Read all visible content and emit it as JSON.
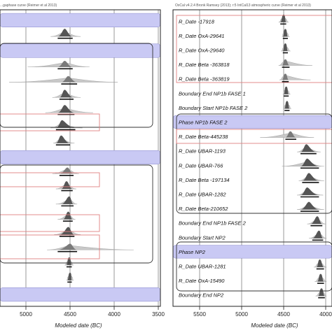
{
  "left_panel": {
    "header": "...gaphase curve (Reimer et al 2013)",
    "xlabel": "Modeled date (BC)",
    "ticks": [
      "5000",
      "4500",
      "4000",
      "3500"
    ],
    "rows": [
      {
        "kind": "phase-bar",
        "label": "",
        "dist": null
      },
      {
        "kind": "dist",
        "label": "",
        "dist": {
          "start": 4720,
          "peak": 4560,
          "end": 4380,
          "range": [
            4640,
            4470
          ],
          "light": false
        }
      },
      {
        "kind": "phase-bar",
        "label": "",
        "dist": null
      },
      {
        "kind": "dist",
        "label": "",
        "dist": {
          "start": 4980,
          "peak": 4560,
          "end": 4280,
          "range": [
            4640,
            4470
          ],
          "light": true
        }
      },
      {
        "kind": "dist",
        "label": "",
        "dist": {
          "start": 5190,
          "peak": 4520,
          "end": 3960,
          "range": [
            4600,
            4420
          ],
          "light": true
        }
      },
      {
        "kind": "dist",
        "label": "",
        "dist": {
          "start": 4700,
          "peak": 4560,
          "end": 4380,
          "range": [
            4620,
            4460
          ],
          "light": false
        }
      },
      {
        "kind": "dist",
        "label": "",
        "dist": {
          "start": 4780,
          "peak": 4560,
          "end": 4240,
          "range": [
            4640,
            4450
          ],
          "light": false
        }
      },
      {
        "kind": "dist",
        "label": "",
        "dist": {
          "start": 4720,
          "peak": 4590,
          "end": 4360,
          "range": [
            4660,
            4440
          ],
          "light": false
        }
      },
      {
        "kind": "dist",
        "label": "",
        "dist": {
          "start": 4690,
          "peak": 4600,
          "end": 4450,
          "range": [
            4660,
            4500
          ],
          "light": false
        }
      },
      {
        "kind": "phase-bar",
        "label": "",
        "dist": null
      },
      {
        "kind": "dist",
        "label": "",
        "dist": {
          "start": 4700,
          "peak": 4530,
          "end": 4400,
          "range": [
            4620,
            4460
          ],
          "light": true
        }
      },
      {
        "kind": "dist",
        "label": "",
        "dist": {
          "start": 4660,
          "peak": 4540,
          "end": 4430,
          "range": [
            4600,
            4470
          ],
          "light": false
        }
      },
      {
        "kind": "dist",
        "label": "",
        "dist": {
          "start": 4660,
          "peak": 4510,
          "end": 4420,
          "range": [
            4600,
            4460
          ],
          "light": false
        }
      },
      {
        "kind": "dist",
        "label": "",
        "dist": {
          "start": 4640,
          "peak": 4520,
          "end": 4440,
          "range": [
            4580,
            4470
          ],
          "light": false
        }
      },
      {
        "kind": "dist",
        "label": "",
        "dist": {
          "start": 4680,
          "peak": 4520,
          "end": 4380,
          "range": [
            4620,
            4450
          ],
          "light": false
        }
      },
      {
        "kind": "dist",
        "label": "",
        "dist": {
          "start": 4760,
          "peak": 4500,
          "end": 3780,
          "range": [
            4640,
            4420
          ],
          "light": true
        }
      },
      {
        "kind": "dist",
        "label": "",
        "dist": {
          "start": 4560,
          "peak": 4510,
          "end": 4460,
          "range": [
            4540,
            4480
          ],
          "light": false
        }
      },
      {
        "kind": "dist",
        "label": "",
        "dist": {
          "start": 4540,
          "peak": 4500,
          "end": 4460,
          "range": [
            4530,
            4480
          ],
          "light": false
        }
      },
      {
        "kind": "phase-bar",
        "label": "",
        "dist": null
      }
    ]
  },
  "right_panel": {
    "header": "OxCal v4.2.4 Bronk Ramsey (2013); r:5 IntCal13 atmospheric curve (Reimer et al 2013)",
    "xlabel": "Modeled date (BC)",
    "ticks": [
      "5500",
      "5000",
      "4500",
      "4000"
    ],
    "rows": [
      {
        "kind": "dist",
        "label": "R_Date -17918",
        "dist": {
          "start": 4560,
          "peak": 4500,
          "end": 4440,
          "range": [
            4540,
            4470
          ],
          "light": false
        }
      },
      {
        "kind": "dist",
        "label": "R_Date OxA-29641",
        "dist": {
          "start": 4520,
          "peak": 4480,
          "end": 4430,
          "range": [
            4510,
            4450
          ],
          "light": false
        }
      },
      {
        "kind": "dist",
        "label": "R_Date OxA-29640",
        "dist": {
          "start": 4530,
          "peak": 4480,
          "end": 4420,
          "range": [
            4510,
            4450
          ],
          "light": false
        }
      },
      {
        "kind": "dist",
        "label": "R_Date Beta -363818",
        "dist": {
          "start": 4560,
          "peak": 4480,
          "end": 4160,
          "range": [
            4520,
            4430
          ],
          "light": true
        }
      },
      {
        "kind": "dist",
        "label": "R_Date Beta -363819",
        "dist": {
          "start": 4550,
          "peak": 4480,
          "end": 4180,
          "range": [
            4520,
            4440
          ],
          "light": true
        }
      },
      {
        "kind": "dist",
        "label": "Boundary End NP1b FASE 1",
        "dist": {
          "start": 4510,
          "peak": 4470,
          "end": 4420,
          "range": [
            4500,
            4440
          ],
          "light": false
        }
      },
      {
        "kind": "dist",
        "label": "Boundary Start NP1b FASE 2",
        "dist": {
          "start": 4500,
          "peak": 4460,
          "end": 4410,
          "range": [
            4490,
            4430
          ],
          "light": false
        }
      },
      {
        "kind": "phase-bar",
        "label": "Phase NP1b FASE 2",
        "dist": null
      },
      {
        "kind": "dist",
        "label": "R_Date Beta-445238",
        "dist": {
          "start": 4780,
          "peak": 4420,
          "end": 4140,
          "range": [
            4480,
            4350
          ],
          "light": true
        }
      },
      {
        "kind": "dist",
        "label": "R_Date UBAR-1193",
        "dist": {
          "start": 4340,
          "peak": 4230,
          "end": 4060,
          "range": [
            4300,
            4110
          ],
          "light": false
        }
      },
      {
        "kind": "dist",
        "label": "R_Date UBAR-766",
        "dist": {
          "start": 4520,
          "peak": 4220,
          "end": 4020,
          "range": [
            4300,
            4080
          ],
          "light": false
        }
      },
      {
        "kind": "dist",
        "label": "R_Date Beta -197134",
        "dist": {
          "start": 4320,
          "peak": 4200,
          "end": 4020,
          "range": [
            4280,
            4080
          ],
          "light": false
        }
      },
      {
        "kind": "dist",
        "label": "R_Date UBAR-1282",
        "dist": {
          "start": 4340,
          "peak": 4220,
          "end": 4030,
          "range": [
            4300,
            4080
          ],
          "light": false
        }
      },
      {
        "kind": "dist",
        "label": "R_Date Beta-210652",
        "dist": {
          "start": 4340,
          "peak": 4200,
          "end": 4020,
          "range": [
            4300,
            4080
          ],
          "light": false
        }
      },
      {
        "kind": "dist",
        "label": "Boundary End NP1b FASE 2",
        "dist": {
          "start": 4220,
          "peak": 4100,
          "end": 4000,
          "range": [
            4180,
            4040
          ],
          "light": false
        }
      },
      {
        "kind": "dist",
        "label": "Boundary Start NP2",
        "dist": {
          "start": 4200,
          "peak": 4080,
          "end": 3990,
          "range": [
            4160,
            4030
          ],
          "light": false
        }
      },
      {
        "kind": "phase-bar",
        "label": "Phase NP2",
        "dist": null
      },
      {
        "kind": "dist",
        "label": "R_Date UBAR-1281",
        "dist": {
          "start": 4140,
          "peak": 4070,
          "end": 3990,
          "range": [
            4110,
            4020
          ],
          "light": false
        }
      },
      {
        "kind": "dist",
        "label": "R_Date OxA-15490",
        "dist": {
          "start": 4130,
          "peak": 4060,
          "end": 3990,
          "range": [
            4100,
            4020
          ],
          "light": false
        }
      },
      {
        "kind": "dist",
        "label": "Boundary End NP2",
        "dist": {
          "start": 4120,
          "peak": 4050,
          "end": 3990,
          "range": [
            4090,
            4010
          ],
          "light": false
        }
      }
    ]
  },
  "colors": {
    "phase_fill": "#c9c9f4",
    "dist_dark": "#555555",
    "dist_light": "#c8c8c8",
    "highlight_box": "#e08080",
    "frame": "#222222"
  },
  "chart_data": [
    {
      "type": "scatter",
      "title": "",
      "xlabel": "Modeled date (BC)",
      "ylabel": "",
      "xlim": [
        5300,
        3500
      ],
      "x_ticks": [
        5000,
        4500,
        4000,
        3500
      ],
      "grid": true,
      "note": "Left panel: posterior probability distributions (OxCal plot); row labels cropped"
    },
    {
      "type": "scatter",
      "title": "",
      "xlabel": "Modeled date (BC)",
      "ylabel": "",
      "xlim": [
        5800,
        3950
      ],
      "x_ticks": [
        5500,
        5000,
        4500,
        4000
      ],
      "grid": true,
      "series": [
        {
          "label": "R_Date -17918",
          "peak": 4500
        },
        {
          "label": "R_Date OxA-29641",
          "peak": 4480
        },
        {
          "label": "R_Date OxA-29640",
          "peak": 4480
        },
        {
          "label": "R_Date Beta -363818",
          "peak": 4480
        },
        {
          "label": "R_Date Beta -363819",
          "peak": 4480
        },
        {
          "label": "Boundary End NP1b FASE 1",
          "peak": 4470
        },
        {
          "label": "Boundary Start NP1b FASE 2",
          "peak": 4460
        },
        {
          "label": "R_Date Beta-445238",
          "peak": 4420
        },
        {
          "label": "R_Date UBAR-1193",
          "peak": 4230
        },
        {
          "label": "R_Date UBAR-766",
          "peak": 4220
        },
        {
          "label": "R_Date Beta -197134",
          "peak": 4200
        },
        {
          "label": "R_Date UBAR-1282",
          "peak": 4220
        },
        {
          "label": "R_Date Beta-210652",
          "peak": 4200
        },
        {
          "label": "Boundary End NP1b FASE 2",
          "peak": 4100
        },
        {
          "label": "Boundary Start NP2",
          "peak": 4080
        },
        {
          "label": "R_Date UBAR-1281",
          "peak": 4070
        },
        {
          "label": "R_Date OxA-15490",
          "peak": 4060
        },
        {
          "label": "Boundary End NP2",
          "peak": 4050
        }
      ]
    }
  ]
}
